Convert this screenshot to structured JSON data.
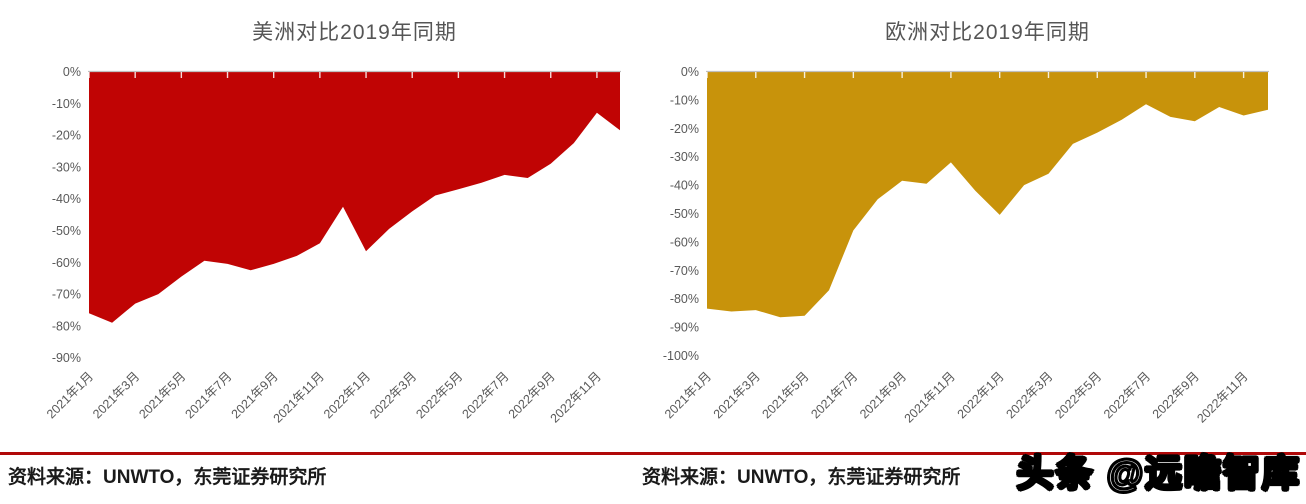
{
  "chart_data": [
    {
      "type": "area",
      "title": "美洲对比2019年同期",
      "color": "#C00404",
      "categories": [
        "2021年1月",
        "2021年2月",
        "2021年3月",
        "2021年4月",
        "2021年5月",
        "2021年6月",
        "2021年7月",
        "2021年8月",
        "2021年9月",
        "2021年10月",
        "2021年11月",
        "2021年12月",
        "2022年1月",
        "2022年2月",
        "2022年3月",
        "2022年4月",
        "2022年5月",
        "2022年6月",
        "2022年7月",
        "2022年8月",
        "2022年9月",
        "2022年10月",
        "2022年11月",
        "2022年12月"
      ],
      "values": [
        -76,
        -79,
        -73,
        -70,
        -64.5,
        -59.5,
        -60.5,
        -62.5,
        -60.5,
        -58,
        -54,
        -42.5,
        -56.5,
        -49.5,
        -44,
        -39,
        -37,
        -35,
        -32.5,
        -33.5,
        -29,
        -22.5,
        -13,
        -18.5
      ],
      "x_tick_labels": [
        "2021年1月",
        "2021年3月",
        "2021年5月",
        "2021年7月",
        "2021年9月",
        "2021年11月",
        "2022年1月",
        "2022年3月",
        "2022年5月",
        "2022年7月",
        "2022年9月",
        "2022年11月"
      ],
      "y_tick_labels": [
        "0%",
        "-10%",
        "-20%",
        "-30%",
        "-40%",
        "-50%",
        "-60%",
        "-70%",
        "-80%",
        "-90%"
      ],
      "ylim": [
        -90,
        0
      ],
      "xlabel": "",
      "ylabel": "",
      "grid": false,
      "legend": null
    },
    {
      "type": "area",
      "title": "欧洲对比2019年同期",
      "color": "#C8930B",
      "categories": [
        "2021年1月",
        "2021年2月",
        "2021年3月",
        "2021年4月",
        "2021年5月",
        "2021年6月",
        "2021年7月",
        "2021年8月",
        "2021年9月",
        "2021年10月",
        "2021年11月",
        "2021年12月",
        "2022年1月",
        "2022年2月",
        "2022年3月",
        "2022年4月",
        "2022年5月",
        "2022年6月",
        "2022年7月",
        "2022年8月",
        "2022年9月",
        "2022年10月",
        "2022年11月",
        "2022年12月"
      ],
      "values": [
        -83.5,
        -84.5,
        -84,
        -86.5,
        -86,
        -77,
        -56,
        -45,
        -38.5,
        -39.5,
        -32,
        -42,
        -50.5,
        -40,
        -36,
        -25.5,
        -21.5,
        -17,
        -11.5,
        -16,
        -17.5,
        -12.5,
        -15.5,
        -13.5
      ],
      "x_tick_labels": [
        "2021年1月",
        "2021年3月",
        "2021年5月",
        "2021年7月",
        "2021年9月",
        "2021年11月",
        "2022年1月",
        "2022年3月",
        "2022年5月",
        "2022年7月",
        "2022年9月",
        "2022年11月"
      ],
      "y_tick_labels": [
        "0%",
        "-10%",
        "-20%",
        "-30%",
        "-40%",
        "-50%",
        "-60%",
        "-70%",
        "-80%",
        "-90%",
        "-100%"
      ],
      "ylim": [
        -100,
        0
      ],
      "xlabel": "",
      "ylabel": "",
      "grid": false,
      "legend": null
    }
  ],
  "footer": {
    "sources": [
      "资料来源：UNWTO，东莞证券研究所",
      "资料来源：UNWTO，东莞证券研究所"
    ],
    "watermark": "头条 @远瞻智库"
  },
  "colors": {
    "americas_fill": "#C00404",
    "europe_fill": "#C8930B",
    "axis_text": "#595959",
    "title_text": "#555555",
    "footer_rule": "#B00808",
    "footer_text": "#1a1a1a"
  }
}
